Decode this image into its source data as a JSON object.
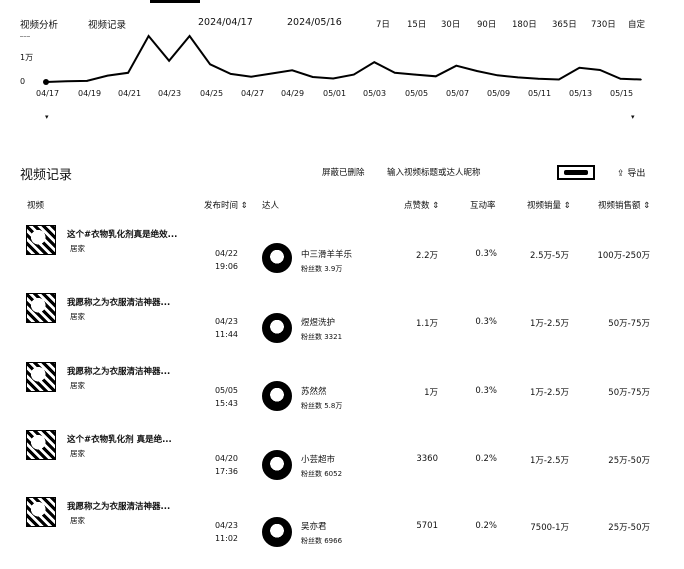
{
  "nav": {
    "tab_analysis": "视频分析",
    "tab_records": "视频记录",
    "date_start": "2024/04/17",
    "date_end": "2024/05/16",
    "ranges": [
      "7日",
      "15日",
      "30日",
      "90日",
      "180日",
      "365日",
      "730日",
      "自定"
    ]
  },
  "trend": {
    "y_labels": [
      "1万",
      "0"
    ],
    "x_labels": [
      "04/17",
      "04/19",
      "04/21",
      "04/23",
      "04/25",
      "04/27",
      "04/29",
      "05/01",
      "05/03",
      "05/05",
      "05/07",
      "05/09",
      "05/11",
      "05/13",
      "05/15"
    ]
  },
  "chart_data": {
    "type": "line",
    "x": [
      "04/17",
      "04/18",
      "04/19",
      "04/20",
      "04/21",
      "04/22",
      "04/23",
      "04/24",
      "04/25",
      "04/26",
      "04/27",
      "04/28",
      "04/29",
      "04/30",
      "05/01",
      "05/02",
      "05/03",
      "05/04",
      "05/05",
      "05/06",
      "05/07",
      "05/08",
      "05/09",
      "05/10",
      "05/11",
      "05/12",
      "05/13",
      "05/14",
      "05/15",
      "05/16"
    ],
    "values": [
      0,
      200,
      300,
      1800,
      2600,
      13000,
      6000,
      14000,
      5000,
      2300,
      1500,
      2400,
      3300,
      1400,
      1000,
      2100,
      5600,
      2600,
      2100,
      1600,
      4600,
      3100,
      1900,
      1300,
      900,
      700,
      4000,
      3400,
      900,
      700
    ],
    "ylim": [
      0,
      13000
    ],
    "y_ticks": [
      "1万",
      "0"
    ]
  },
  "records": {
    "title": "视频记录",
    "filter_deleted": "屏蔽已删除",
    "search_placeholder": "输入视频标题或达人昵称",
    "export_label": "导出",
    "columns": {
      "video": "视频",
      "publish_time": "发布时间 ⇕",
      "author": "达人",
      "likes": "点赞数 ⇕",
      "interaction": "互动率",
      "sales": "视频销量 ⇕",
      "revenue": "视频销售额 ⇕"
    },
    "rows": [
      {
        "title": "这个#衣物乳化剂真是绝效...",
        "tag": "居家",
        "date": "04/22",
        "time": "19:06",
        "author": "中三滑羊羊乐",
        "fans": "粉丝数 3.9万",
        "likes": "2.2万",
        "rate": "0.3%",
        "sales": "2.5万-5万",
        "revenue": "100万-250万"
      },
      {
        "title": "我愿称之为衣服清洁神器...",
        "tag": "居家",
        "date": "04/23",
        "time": "11:44",
        "author": "煜煜洗护",
        "fans": "粉丝数 3321",
        "likes": "1.1万",
        "rate": "0.3%",
        "sales": "1万-2.5万",
        "revenue": "50万-75万"
      },
      {
        "title": "我愿称之为衣服清洁神器...",
        "tag": "居家",
        "date": "05/05",
        "time": "15:43",
        "author": "苏然然",
        "fans": "粉丝数 5.8万",
        "likes": "1万",
        "rate": "0.3%",
        "sales": "1万-2.5万",
        "revenue": "50万-75万"
      },
      {
        "title": "这个#衣物乳化剂 真是绝...",
        "tag": "居家",
        "date": "04/20",
        "time": "17:36",
        "author": "小芸超市",
        "fans": "粉丝数 6052",
        "likes": "3360",
        "rate": "0.2%",
        "sales": "1万-2.5万",
        "revenue": "25万-50万"
      },
      {
        "title": "我愿称之为衣服清洁神器...",
        "tag": "居家",
        "date": "04/23",
        "time": "11:02",
        "author": "吴亦君",
        "fans": "粉丝数 6966",
        "likes": "5701",
        "rate": "0.2%",
        "sales": "7500-1万",
        "revenue": "25万-50万"
      }
    ]
  }
}
